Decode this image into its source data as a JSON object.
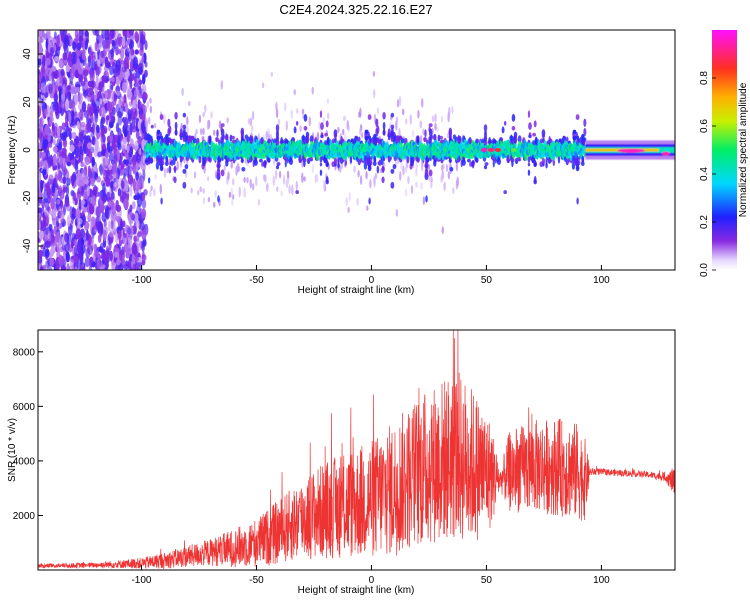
{
  "title": "C2E4.2024.325.22.16.E27",
  "colors": {
    "snr_line": "#ee3333",
    "spectrogram_low": "#e0d0ff",
    "spectrogram_mid": "#6a12ff",
    "spectrogram_peak": "#ff1a55"
  },
  "chart_data": [
    {
      "type": "heatmap",
      "title": "",
      "xlabel": "Height of straight line (km)",
      "ylabel": "Frequency (Hz)",
      "xlim": [
        -145,
        132
      ],
      "ylim": [
        -50,
        50
      ],
      "x_ticks": [
        -100,
        -50,
        0,
        50,
        100
      ],
      "y_ticks": [
        -40,
        -20,
        0,
        20,
        40
      ],
      "colorbar": {
        "label": "Normalized spectral amplitude",
        "range": [
          0,
          1
        ],
        "ticks": [
          "0.0",
          "0.2",
          "0.4",
          "0.6",
          "0.8"
        ],
        "colormap": "rainbow (violet → blue → cyan → green → yellow → orange → red → magenta)"
      },
      "regions": [
        {
          "x_range": [
            -145,
            -98
          ],
          "freq_range": [
            -50,
            50
          ],
          "amplitude": 0.15,
          "texture": "scattered violet"
        },
        {
          "x_range": [
            -98,
            93
          ],
          "freq_range": [
            -8,
            8
          ],
          "amplitude": 0.3,
          "texture": "dense band with spikes to ±30 Hz"
        },
        {
          "x_range": [
            93,
            132
          ],
          "freq_range": [
            -3,
            3
          ],
          "amplitude": 0.95,
          "texture": "narrow red band near 0 Hz"
        }
      ]
    },
    {
      "type": "line",
      "title": "",
      "xlabel": "Height of straight line (km)",
      "ylabel": "SNR (10 * v/v)",
      "xlim": [
        -145,
        132
      ],
      "ylim": [
        0,
        8800
      ],
      "x_ticks": [
        -100,
        -50,
        0,
        50,
        100
      ],
      "y_ticks": [
        2000,
        4000,
        6000,
        8000
      ],
      "series": [
        {
          "x": [
            -145,
            -120,
            -100,
            -90,
            -80,
            -70,
            -60,
            -50,
            -40,
            -30,
            -20,
            -10,
            0,
            10,
            20,
            30,
            37,
            45,
            52,
            56,
            60,
            70,
            80,
            90,
            93,
            95,
            100,
            110,
            120,
            128,
            132
          ],
          "y_center": [
            150,
            180,
            250,
            350,
            500,
            650,
            800,
            1000,
            1400,
            1900,
            2200,
            2400,
            2600,
            3000,
            3600,
            4000,
            4200,
            3800,
            3500,
            3300,
            3600,
            3800,
            3800,
            3600,
            3300,
            3600,
            3600,
            3550,
            3500,
            3400,
            3200
          ],
          "y_spread": [
            80,
            100,
            200,
            300,
            400,
            500,
            700,
            900,
            1200,
            1500,
            1800,
            2000,
            2200,
            2500,
            2800,
            3000,
            3200,
            2800,
            2000,
            400,
            1500,
            1700,
            1800,
            1800,
            1500,
            150,
            120,
            120,
            120,
            150,
            600
          ]
        }
      ]
    }
  ]
}
